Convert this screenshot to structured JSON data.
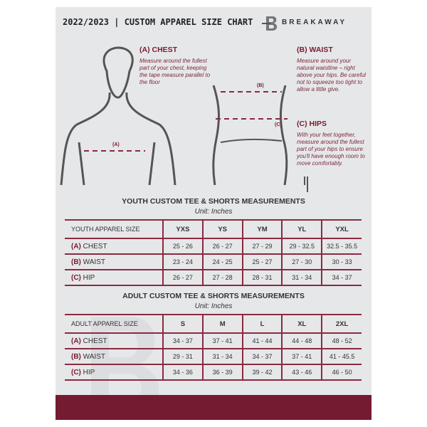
{
  "header": {
    "title": "2022/2023 | CUSTOM APPAREL SIZE CHART",
    "brand": "BREAKAWAY",
    "logo_letter": "B"
  },
  "chest": {
    "title": "(A) CHEST",
    "desc": "Measure around the fullest part of your chest, keeping the tape measure parallel to the floor",
    "marker": "(A)"
  },
  "waist": {
    "title": "(B) WAIST",
    "desc": "Measure around your natural waistline – right above your hips. Be careful not to squeeze too tight to allow a little give.",
    "marker": "(B)"
  },
  "hips": {
    "title": "(C) HIPS",
    "desc": "With your feet together, measure around the fullest part of your hips to ensure you'll have enough room to move comfortably.",
    "marker": "(C)"
  },
  "accent": "#741a31",
  "youth": {
    "title": "YOUTH CUSTOM TEE & SHORTS MEASUREMENTS",
    "unit": "Unit: Inches",
    "header": "YOUTH APPAREL SIZE",
    "sizes": [
      "YXS",
      "YS",
      "YM",
      "YL",
      "YXL"
    ],
    "rows": [
      {
        "letter": "(A)",
        "label": "CHEST",
        "values": [
          "25 - 26",
          "26 - 27",
          "27 - 29",
          "29 - 32.5",
          "32.5 - 35.5"
        ]
      },
      {
        "letter": "(B)",
        "label": "WAIST",
        "values": [
          "23 - 24",
          "24 - 25",
          "25 - 27",
          "27 - 30",
          "30 - 33"
        ]
      },
      {
        "letter": "(C)",
        "label": "HIP",
        "values": [
          "26 - 27",
          "27 - 28",
          "28 - 31",
          "31 - 34",
          "34 - 37"
        ]
      }
    ]
  },
  "adult": {
    "title": "ADULT CUSTOM TEE & SHORTS MEASUREMENTS",
    "unit": "Unit: Inches",
    "header": "ADULT APPAREL SIZE",
    "sizes": [
      "S",
      "M",
      "L",
      "XL",
      "2XL"
    ],
    "rows": [
      {
        "letter": "(A)",
        "label": "CHEST",
        "values": [
          "34 - 37",
          "37 - 41",
          "41 - 44",
          "44 - 48",
          "48 - 52"
        ]
      },
      {
        "letter": "(B)",
        "label": "WAIST",
        "values": [
          "29 - 31",
          "31 - 34",
          "34 - 37",
          "37 - 41",
          "41 - 45.5"
        ]
      },
      {
        "letter": "(C)",
        "label": "HIP",
        "values": [
          "34 - 36",
          "36 - 39",
          "39 - 42",
          "43 - 46",
          "46 - 50"
        ]
      }
    ]
  }
}
